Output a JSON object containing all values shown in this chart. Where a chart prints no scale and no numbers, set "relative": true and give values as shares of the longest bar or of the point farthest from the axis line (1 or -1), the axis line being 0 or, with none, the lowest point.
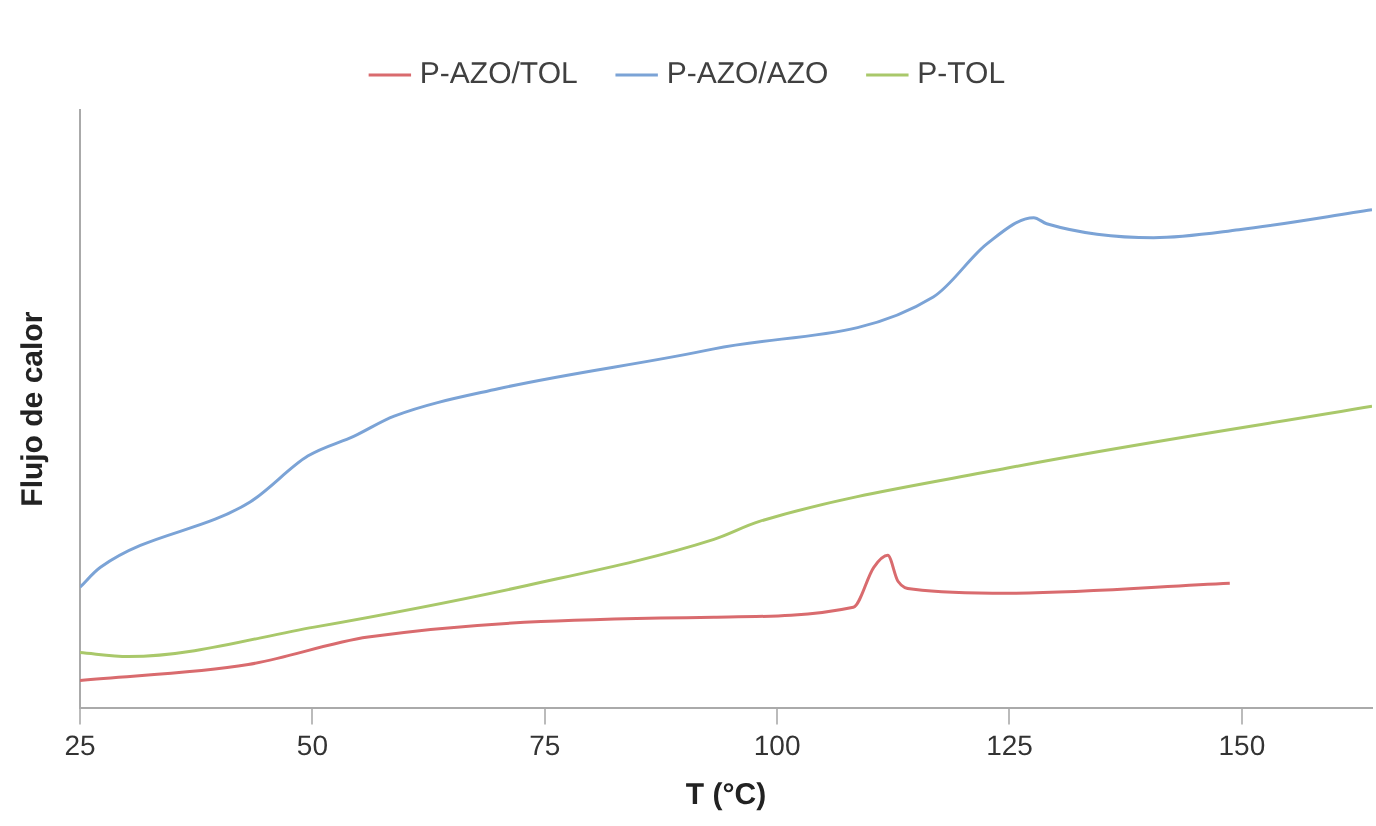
{
  "chart_data": {
    "type": "line",
    "xlabel": "T (°C)",
    "ylabel": "Flujo de calor",
    "relative": true,
    "xlim": [
      25,
      164
    ],
    "xticks": [
      25,
      50,
      75,
      100,
      125,
      150
    ],
    "grid": false,
    "legend": "top",
    "marker": "none",
    "line_style": "solid",
    "series": [
      {
        "name": "P-AZO/TOL",
        "color": "#d96b6e",
        "x": [
          25,
          43.1,
          56,
          93.2,
          108.2,
          110.4,
          111.9,
          113,
          114.7,
          124.8,
          148.7
        ],
        "values": [
          0.056,
          0.088,
          0.143,
          0.183,
          0.203,
          0.283,
          0.307,
          0.255,
          0.239,
          0.231,
          0.251
        ]
      },
      {
        "name": "P-AZO/AZO",
        "color": "#7ba3d6",
        "x": [
          25,
          27.2,
          43.3,
          49.5,
          54.5,
          58.8,
          70,
          93.2,
          116.8,
          122.6,
          127.6,
          129,
          140.5,
          149.7,
          164
        ],
        "values": [
          0.243,
          0.283,
          0.414,
          0.506,
          0.546,
          0.586,
          0.641,
          0.721,
          0.825,
          0.932,
          0.984,
          0.972,
          0.944,
          0.96,
          1
        ]
      },
      {
        "name": "P-TOL",
        "color": "#a9c86a",
        "x": [
          25,
          30.2,
          50.2,
          73.2,
          93.2,
          98.1,
          124.8,
          164
        ],
        "values": [
          0.112,
          0.104,
          0.163,
          0.247,
          0.339,
          0.375,
          0.482,
          0.606
        ]
      }
    ]
  }
}
